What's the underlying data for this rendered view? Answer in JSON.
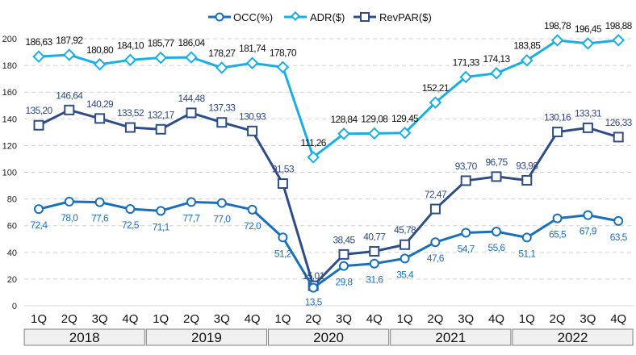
{
  "chart_data": {
    "type": "line",
    "title": "",
    "xlabel": "",
    "ylabel": "",
    "ylim": [
      0,
      200
    ],
    "yticks": [
      0,
      20,
      40,
      60,
      80,
      100,
      120,
      140,
      160,
      180,
      200
    ],
    "grid": true,
    "legend_position": "top-center",
    "x": [
      "1Q",
      "2Q",
      "3Q",
      "4Q",
      "1Q",
      "2Q",
      "3Q",
      "4Q",
      "1Q",
      "2Q",
      "3Q",
      "4Q",
      "1Q",
      "2Q",
      "3Q",
      "4Q",
      "1Q",
      "2Q",
      "3Q",
      "4Q"
    ],
    "year_groups": [
      {
        "label": "2018",
        "count": 4
      },
      {
        "label": "2019",
        "count": 4
      },
      {
        "label": "2020",
        "count": 4
      },
      {
        "label": "2021",
        "count": 4
      },
      {
        "label": "2022",
        "count": 4
      }
    ],
    "series": [
      {
        "name": "OCC(%)",
        "marker": "circle",
        "color": "#1a6fba",
        "values": [
          72.4,
          78.0,
          77.6,
          72.5,
          71.1,
          77.7,
          77.0,
          72.0,
          51.2,
          13.5,
          29.8,
          31.6,
          35.4,
          47.6,
          54.7,
          55.6,
          51.1,
          65.5,
          67.9,
          63.5
        ],
        "labels": [
          "72,4",
          "78,0",
          "77,6",
          "72,5",
          "71,1",
          "77,7",
          "77,0",
          "72,0",
          "51,2",
          "13,5",
          "29,8",
          "31,6",
          "35,4",
          "47,6",
          "54,7",
          "55,6",
          "51,1",
          "65,5",
          "67,9",
          "63,5"
        ]
      },
      {
        "name": "ADR($)",
        "marker": "diamond",
        "color": "#1aaee5",
        "values": [
          186.63,
          187.92,
          180.8,
          184.1,
          185.77,
          186.04,
          178.27,
          181.74,
          178.7,
          111.26,
          128.84,
          129.08,
          129.45,
          152.21,
          171.33,
          174.13,
          183.85,
          198.78,
          196.45,
          198.88
        ],
        "labels": [
          "186,63",
          "187,92",
          "180,80",
          "184,10",
          "185,77",
          "186,04",
          "178,27",
          "181,74",
          "178,70",
          "111,26",
          "128,84",
          "129,08",
          "129,45",
          "152,21",
          "171,33",
          "174,13",
          "183,85",
          "198,78",
          "196,45",
          "198,88"
        ]
      },
      {
        "name": "RevPAR($)",
        "marker": "square",
        "color": "#2e4d87",
        "values": [
          135.2,
          146.64,
          140.29,
          133.52,
          132.17,
          144.48,
          137.33,
          130.93,
          91.53,
          15.01,
          38.45,
          40.77,
          45.78,
          72.47,
          93.7,
          96.75,
          93.98,
          130.16,
          133.31,
          126.33
        ],
        "labels": [
          "135,20",
          "146,64",
          "140,29",
          "133,52",
          "132,17",
          "144,48",
          "137,33",
          "130,93",
          "91,53",
          "15,01",
          "38,45",
          "40,77",
          "45,78",
          "72,47",
          "93,70",
          "96,75",
          "93,98",
          "130,16",
          "133,31",
          "126,33"
        ]
      }
    ]
  },
  "legend": {
    "items": [
      {
        "label": "OCC(%)",
        "icon": "circle-marker-line-icon"
      },
      {
        "label": "ADR($)",
        "icon": "diamond-marker-line-icon"
      },
      {
        "label": "RevPAR($)",
        "icon": "square-marker-line-icon"
      }
    ]
  }
}
